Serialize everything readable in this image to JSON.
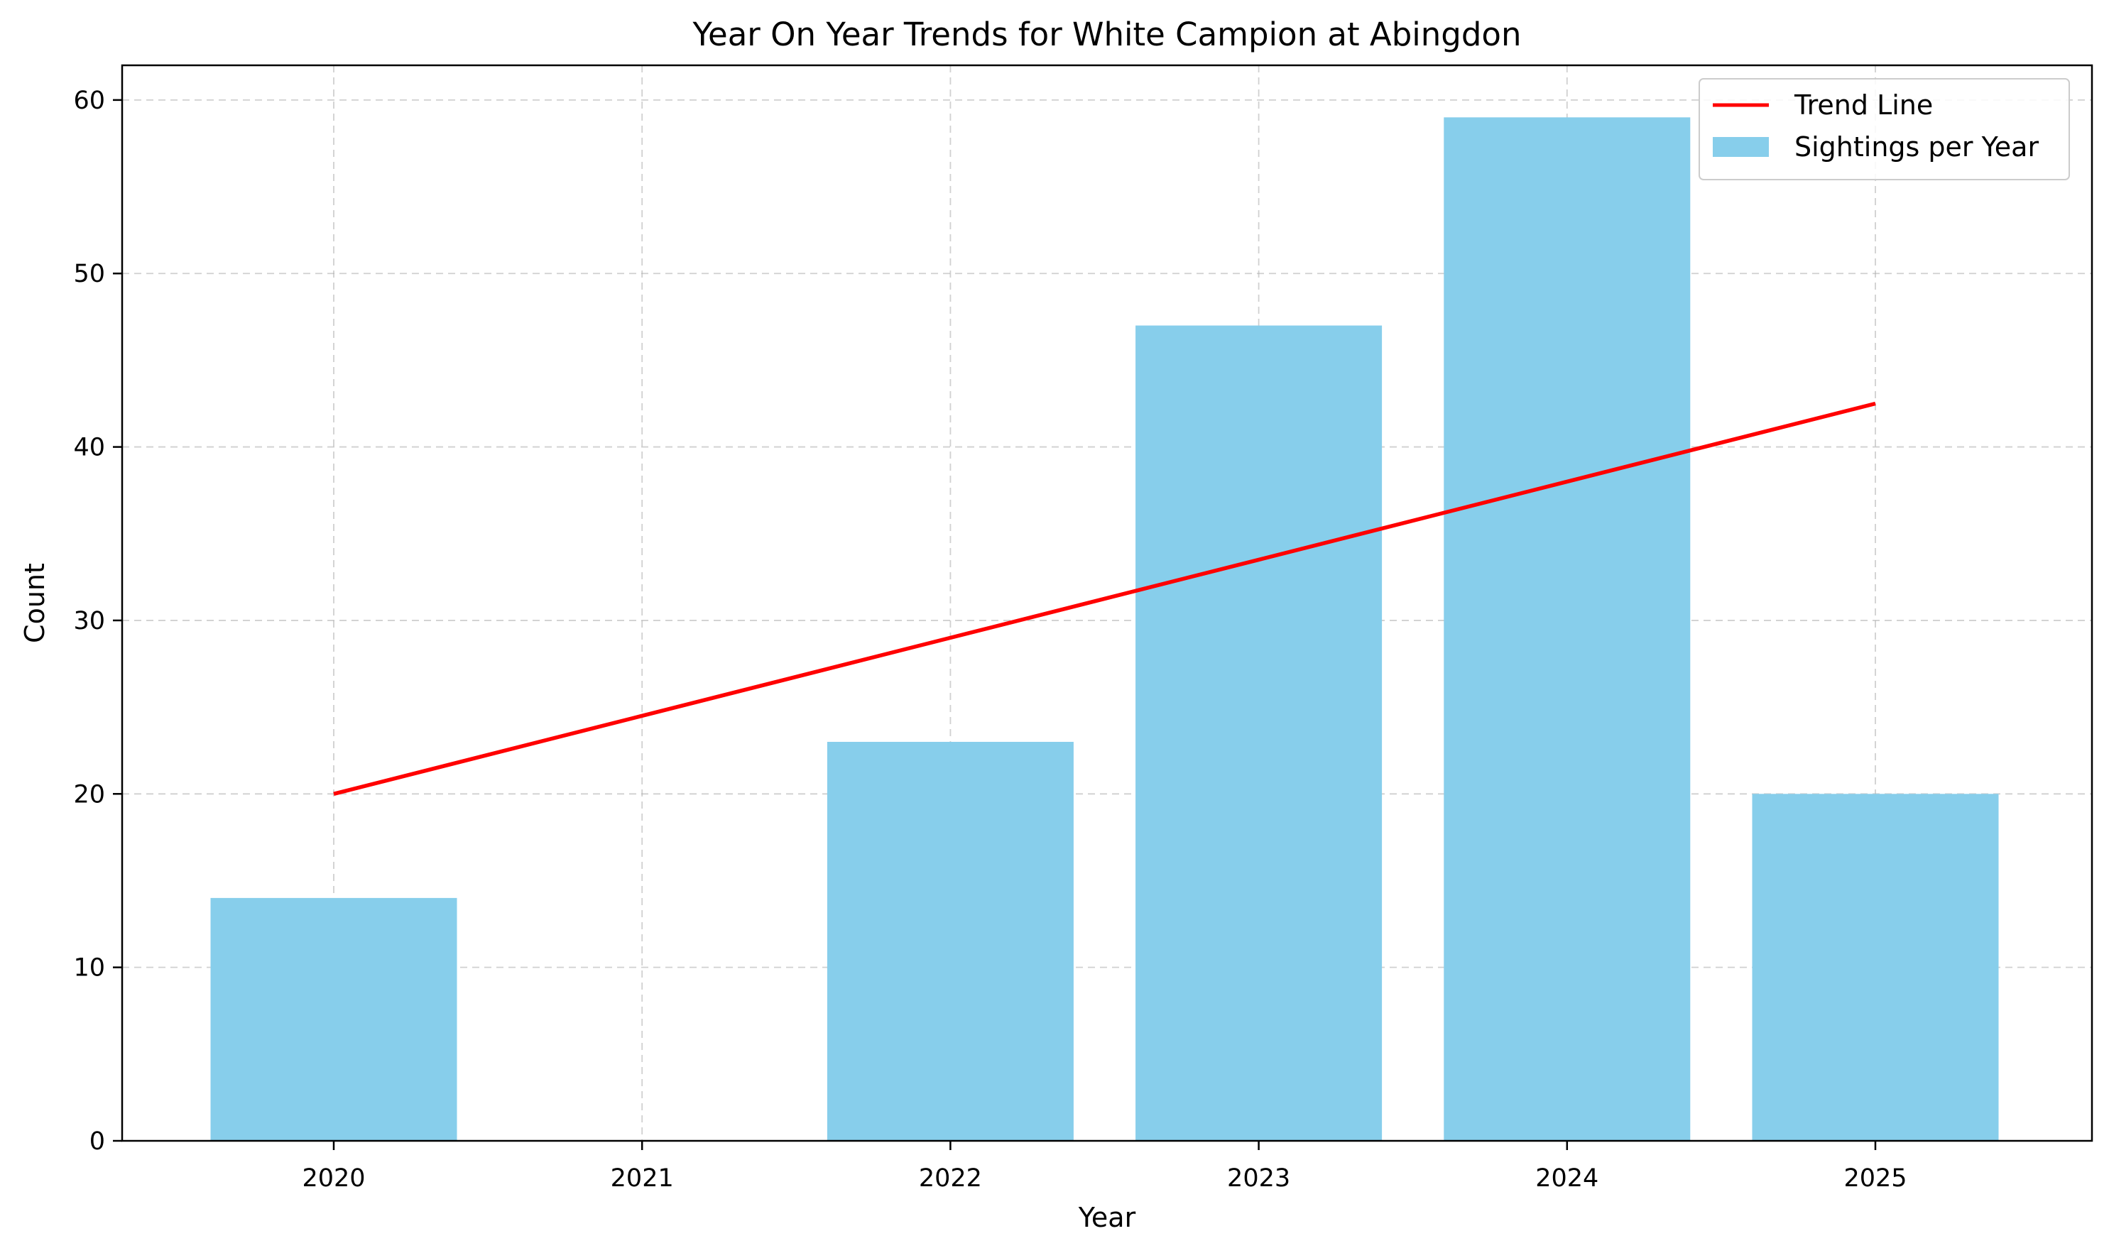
{
  "chart_data": {
    "type": "bar",
    "title": "Year On Year Trends for White Campion at Abingdon",
    "xlabel": "Year",
    "ylabel": "Count",
    "categories": [
      "2020",
      "2021",
      "2022",
      "2023",
      "2024",
      "2025"
    ],
    "series": [
      {
        "name": "Sightings per Year",
        "type": "bar",
        "color": "#87CEEB",
        "values": [
          14,
          0,
          23,
          47,
          59,
          20
        ]
      },
      {
        "name": "Trend Line",
        "type": "line",
        "color": "#FF0000",
        "values": [
          20.0,
          24.5,
          29.0,
          33.5,
          38.0,
          42.5
        ]
      }
    ],
    "yticks": [
      0,
      10,
      20,
      30,
      40,
      50,
      60
    ],
    "ylim": [
      0,
      62
    ],
    "grid": true,
    "legend_position": "top-right"
  }
}
